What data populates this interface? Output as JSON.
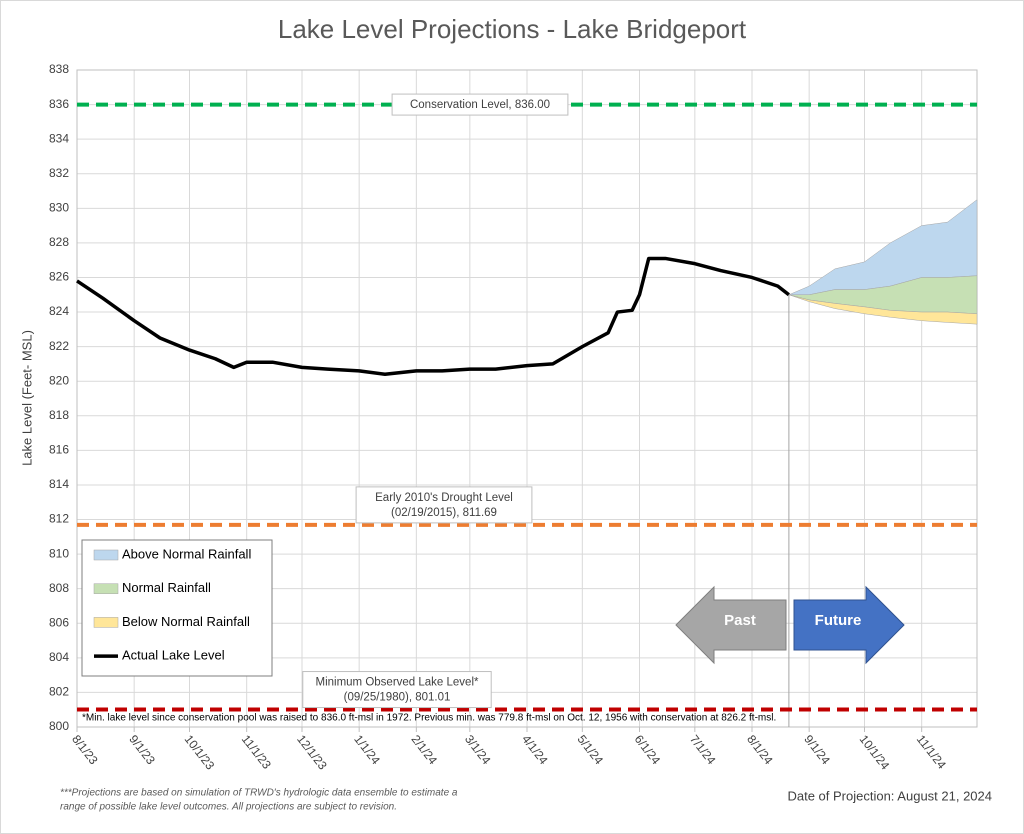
{
  "chart_data": {
    "type": "line",
    "title": "Lake Level Projections - Lake Bridgeport",
    "y_label": "Lake Level (Feet- MSL)",
    "xlim": [
      "2023-08-01",
      "2024-12-01"
    ],
    "xticks": [
      {
        "value": "2023-08-01",
        "label": "8/1/23"
      },
      {
        "value": "2023-09-01",
        "label": "9/1/23"
      },
      {
        "value": "2023-10-01",
        "label": "10/1/23"
      },
      {
        "value": "2023-11-01",
        "label": "11/1/23"
      },
      {
        "value": "2023-12-01",
        "label": "12/1/23"
      },
      {
        "value": "2024-01-01",
        "label": "1/1/24"
      },
      {
        "value": "2024-02-01",
        "label": "2/1/24"
      },
      {
        "value": "2024-03-01",
        "label": "3/1/24"
      },
      {
        "value": "2024-04-01",
        "label": "4/1/24"
      },
      {
        "value": "2024-05-01",
        "label": "5/1/24"
      },
      {
        "value": "2024-06-01",
        "label": "6/1/24"
      },
      {
        "value": "2024-07-01",
        "label": "7/1/24"
      },
      {
        "value": "2024-08-01",
        "label": "8/1/24"
      },
      {
        "value": "2024-09-01",
        "label": "9/1/24"
      },
      {
        "value": "2024-10-01",
        "label": "10/1/24"
      },
      {
        "value": "2024-11-01",
        "label": "11/1/24"
      }
    ],
    "ylim": [
      800,
      838
    ],
    "yticks": [
      800,
      802,
      804,
      806,
      808,
      810,
      812,
      814,
      816,
      818,
      820,
      822,
      824,
      826,
      828,
      830,
      832,
      834,
      836,
      838
    ],
    "grid": true,
    "legend": "lower left",
    "series": [
      {
        "name": "Above Normal Rainfall",
        "color": "#bdd7ee",
        "x": [
          "2024-08-21",
          "2024-09-01",
          "2024-09-15",
          "2024-10-01",
          "2024-10-15",
          "2024-11-01",
          "2024-11-15",
          "2024-12-01"
        ],
        "low": [
          825.0,
          825.0,
          825.3,
          825.3,
          825.5,
          826.0,
          826.0,
          826.1
        ],
        "high": [
          825.0,
          825.5,
          826.5,
          826.9,
          828.0,
          829.0,
          829.2,
          830.5
        ]
      },
      {
        "name": "Normal Rainfall",
        "color": "#c6e0b4",
        "x": [
          "2024-08-21",
          "2024-09-01",
          "2024-09-15",
          "2024-10-01",
          "2024-10-15",
          "2024-11-01",
          "2024-11-15",
          "2024-12-01"
        ],
        "low": [
          825.0,
          824.7,
          824.5,
          824.3,
          824.1,
          824.0,
          824.0,
          823.9
        ],
        "high": [
          825.0,
          825.0,
          825.3,
          825.3,
          825.5,
          826.0,
          826.0,
          826.1
        ]
      },
      {
        "name": "Below Normal Rainfall",
        "color": "#ffe699",
        "x": [
          "2024-08-21",
          "2024-09-01",
          "2024-09-15",
          "2024-10-01",
          "2024-10-15",
          "2024-11-01",
          "2024-11-15",
          "2024-12-01"
        ],
        "low": [
          825.0,
          824.6,
          824.2,
          823.9,
          823.7,
          823.5,
          823.4,
          823.3
        ],
        "high": [
          825.0,
          824.7,
          824.5,
          824.3,
          824.1,
          824.0,
          824.0,
          823.9
        ]
      },
      {
        "name": "Actual Lake Level",
        "color": "#000000",
        "x": [
          "2023-08-01",
          "2023-08-15",
          "2023-09-01",
          "2023-09-15",
          "2023-10-01",
          "2023-10-15",
          "2023-10-25",
          "2023-11-01",
          "2023-11-15",
          "2023-12-01",
          "2023-12-15",
          "2024-01-01",
          "2024-01-15",
          "2024-02-01",
          "2024-02-15",
          "2024-03-01",
          "2024-03-15",
          "2024-04-01",
          "2024-04-15",
          "2024-05-01",
          "2024-05-15",
          "2024-05-20",
          "2024-05-28",
          "2024-06-01",
          "2024-06-06",
          "2024-06-15",
          "2024-07-01",
          "2024-07-15",
          "2024-08-01",
          "2024-08-15",
          "2024-08-21"
        ],
        "values": [
          825.8,
          824.8,
          823.5,
          822.5,
          821.8,
          821.3,
          820.8,
          821.1,
          821.1,
          820.8,
          820.7,
          820.6,
          820.4,
          820.6,
          820.6,
          820.7,
          820.7,
          820.9,
          821.0,
          822.0,
          822.8,
          824.0,
          824.1,
          825.0,
          827.1,
          827.1,
          826.8,
          826.4,
          826.0,
          825.5,
          825.0
        ]
      }
    ],
    "reference_lines": [
      {
        "value": 836.0,
        "color": "#00b050",
        "label": [
          "Conservation Level, 836.00"
        ]
      },
      {
        "value": 811.69,
        "color": "#ed7d31",
        "label": [
          "Early 2010's Drought Level",
          "(02/19/2015), 811.69"
        ]
      },
      {
        "value": 801.01,
        "color": "#c00000",
        "label": [
          "Minimum Observed Lake Level*",
          "(09/25/1980), 801.01"
        ]
      }
    ],
    "divider_x": "2024-08-21",
    "arrows": {
      "past": "Past",
      "future": "Future"
    },
    "plot_note": "*Min. lake level since conservation pool was raised to 836.0 ft-msl in 1972.  Previous min. was 779.8 ft-msl on Oct. 12, 1956 with conservation at 826.2 ft-msl.",
    "footnote": [
      "***Projections are based on simulation of TRWD's hydrologic data ensemble to estimate a",
      "range of possible lake level outcomes.  All projections are subject to revision."
    ],
    "projection_date_text": "Date of Projection: August 21, 2024"
  }
}
